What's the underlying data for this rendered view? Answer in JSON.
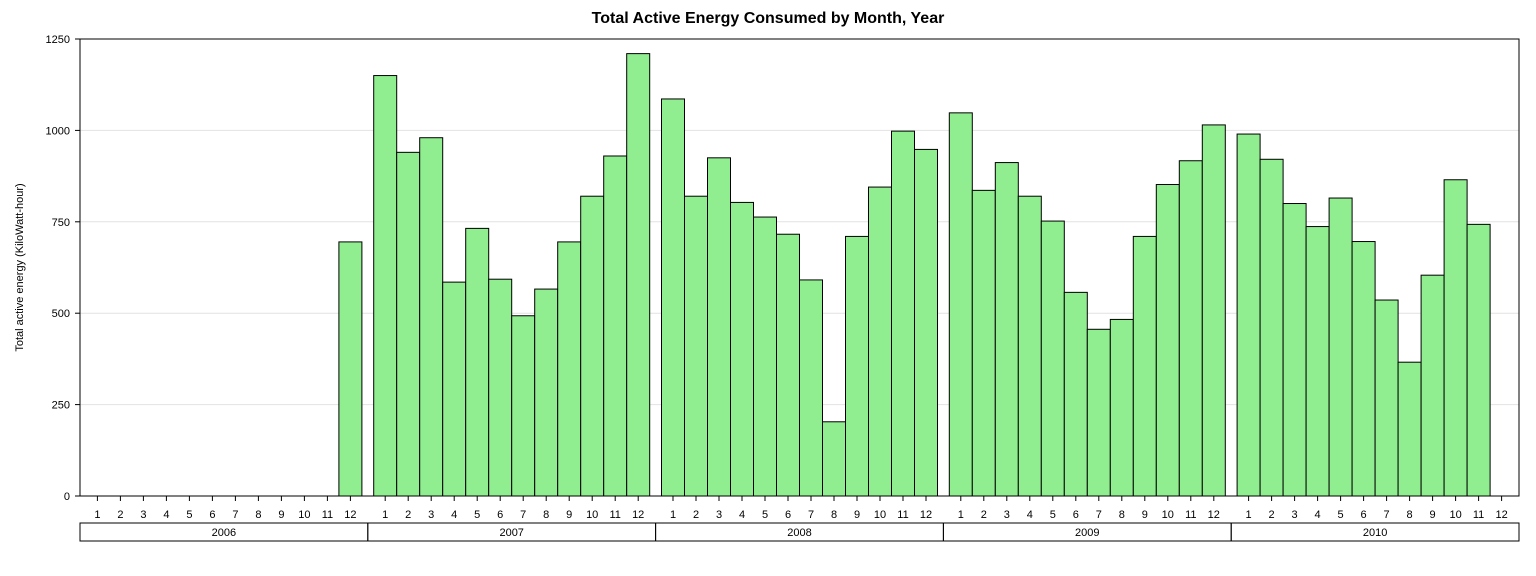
{
  "chart_data": {
    "type": "bar",
    "title": "Total Active Energy Consumed by Month, Year",
    "xlabel": "",
    "ylabel": "Total active energy (KiloWatt-hour)",
    "ylim": [
      0,
      1250
    ],
    "yticks": [
      0,
      250,
      500,
      750,
      1000,
      1250
    ],
    "grid": true,
    "bar_color": "#90EE90",
    "groups": [
      {
        "year": "2006",
        "months": [
          "1",
          "2",
          "3",
          "4",
          "5",
          "6",
          "7",
          "8",
          "9",
          "10",
          "11",
          "12"
        ],
        "values": [
          null,
          null,
          null,
          null,
          null,
          null,
          null,
          null,
          null,
          null,
          null,
          695
        ]
      },
      {
        "year": "2007",
        "months": [
          "1",
          "2",
          "3",
          "4",
          "5",
          "6",
          "7",
          "8",
          "9",
          "10",
          "11",
          "12"
        ],
        "values": [
          1150,
          940,
          980,
          585,
          732,
          593,
          493,
          566,
          695,
          820,
          930,
          1210
        ]
      },
      {
        "year": "2008",
        "months": [
          "1",
          "2",
          "3",
          "4",
          "5",
          "6",
          "7",
          "8",
          "9",
          "10",
          "11",
          "12"
        ],
        "values": [
          1086,
          820,
          925,
          803,
          763,
          716,
          591,
          203,
          710,
          845,
          998,
          948
        ]
      },
      {
        "year": "2009",
        "months": [
          "1",
          "2",
          "3",
          "4",
          "5",
          "6",
          "7",
          "8",
          "9",
          "10",
          "11",
          "12"
        ],
        "values": [
          1048,
          836,
          912,
          820,
          752,
          557,
          456,
          483,
          710,
          852,
          917,
          1015
        ]
      },
      {
        "year": "2010",
        "months": [
          "1",
          "2",
          "3",
          "4",
          "5",
          "6",
          "7",
          "8",
          "9",
          "10",
          "11",
          "12"
        ],
        "values": [
          990,
          921,
          800,
          737,
          815,
          696,
          536,
          366,
          604,
          865,
          743,
          null
        ]
      }
    ]
  }
}
